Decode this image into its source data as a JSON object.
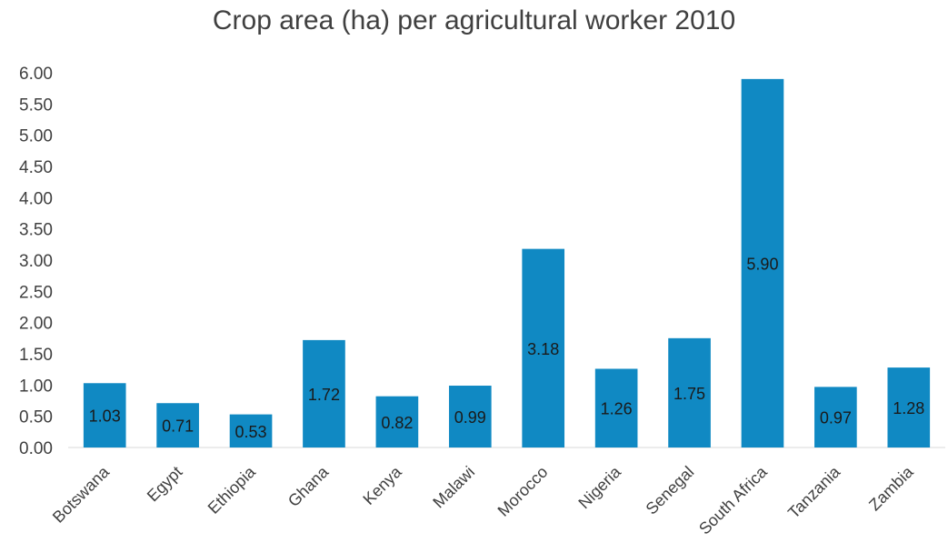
{
  "chart_data": {
    "type": "bar",
    "title": "Crop area (ha) per agricultural worker 2010",
    "xlabel": "",
    "ylabel": "",
    "categories": [
      "Botswana",
      "Egypt",
      "Ethiopia",
      "Ghana",
      "Kenya",
      "Malawi",
      "Morocco",
      "Nigeria",
      "Senegal",
      "South Africa",
      "Tanzania",
      "Zambia"
    ],
    "values": [
      1.03,
      0.71,
      0.53,
      1.72,
      0.82,
      0.99,
      3.18,
      1.26,
      1.75,
      5.9,
      0.97,
      1.28
    ],
    "data_labels": [
      "1.03",
      "0.71",
      "0.53",
      "1.72",
      "0.82",
      "0.99",
      "3.18",
      "1.26",
      "1.75",
      "5.90",
      "0.97",
      "1.28"
    ],
    "ylim": [
      0,
      6
    ],
    "yticks": [
      "0.00",
      "0.50",
      "1.00",
      "1.50",
      "2.00",
      "2.50",
      "3.00",
      "3.50",
      "4.00",
      "4.50",
      "5.00",
      "5.50",
      "6.00"
    ],
    "grid": false,
    "legend": "none",
    "bar_color": "#1089C3"
  }
}
